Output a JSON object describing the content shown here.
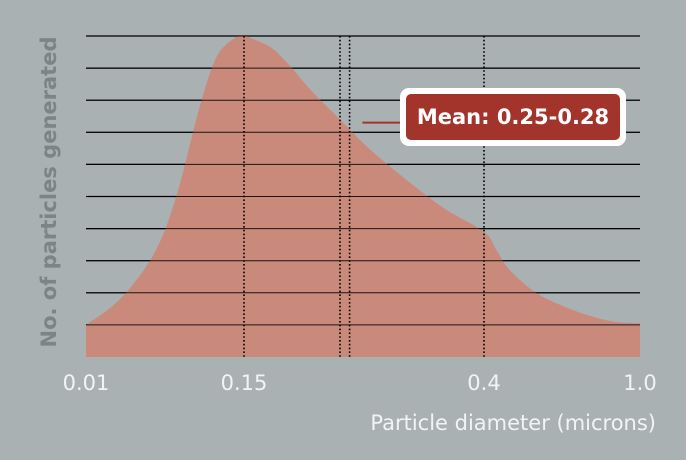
{
  "chart_data": {
    "type": "area",
    "title": "",
    "xlabel": "Particle diameter (microns)",
    "ylabel": "No. of particles generated",
    "x_tick_labels": [
      "0.01",
      "0.15",
      "0.4",
      "1.0"
    ],
    "x_tick_values": [
      0.01,
      0.15,
      0.4,
      1.0
    ],
    "xlim": [
      0.01,
      1.0
    ],
    "ylim": [
      0,
      10
    ],
    "grid": {
      "horizontal": true,
      "count": 10
    },
    "series": [
      {
        "x": [
          0.01,
          0.04,
          0.07,
          0.09,
          0.11,
          0.125,
          0.14,
          0.15,
          0.16,
          0.18,
          0.2,
          0.22,
          0.25,
          0.28,
          0.32,
          0.36,
          0.4,
          0.45,
          0.5,
          0.6,
          0.7,
          0.8,
          0.9,
          1.0
        ],
        "y": [
          1.0,
          1.8,
          3.2,
          5.0,
          7.7,
          9.3,
          9.9,
          10.0,
          9.9,
          9.6,
          9.0,
          8.3,
          7.4,
          6.5,
          5.5,
          4.6,
          3.9,
          3.3,
          2.7,
          2.0,
          1.6,
          1.3,
          1.1,
          1.05
        ],
        "color": "#c98a7c"
      }
    ],
    "reference_lines": [
      0.15,
      0.25,
      0.26,
      0.4
    ],
    "annotations": [
      {
        "text": "Mean: 0.25-0.28",
        "x": 0.265,
        "y": 7.3
      }
    ],
    "colors": {
      "background": "#a9b1b3",
      "fill": "#c98a7c",
      "grid": "#000000",
      "callout_fill": "#a3342b",
      "callout_border": "#ffffff"
    }
  }
}
